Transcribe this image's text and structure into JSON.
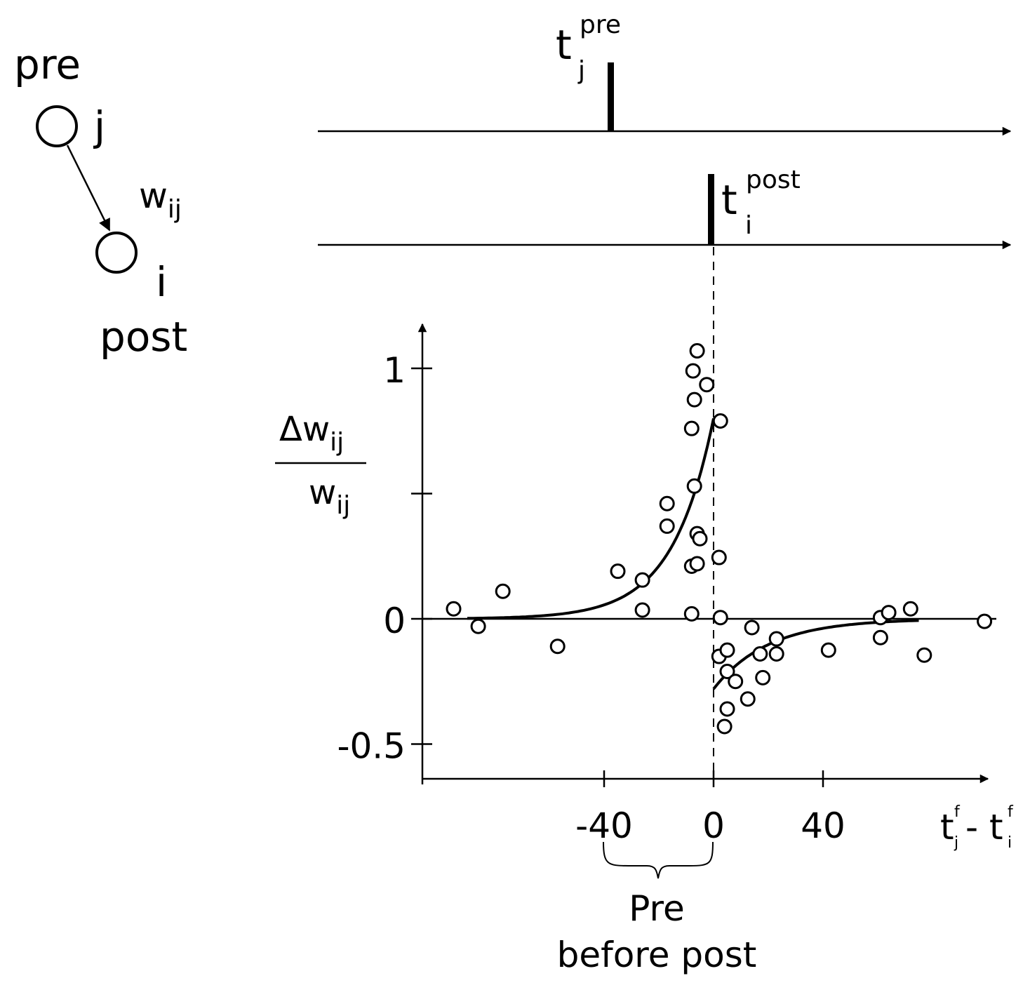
{
  "diagram": {
    "neuron_pre_label": "pre",
    "neuron_pre_index": "j",
    "neuron_post_label": "post",
    "neuron_post_index": "i",
    "weight_symbol": "w",
    "weight_subscript": "ij",
    "pre_spike": {
      "symbol": "t",
      "subscript": "j",
      "superscript": "pre"
    },
    "post_spike": {
      "symbol": "t",
      "subscript": "i",
      "superscript": "post"
    },
    "brace_label_line1": "Pre",
    "brace_label_line2": "before post"
  },
  "chart_data": {
    "type": "scatter",
    "ylabel_numerator": "Δw",
    "ylabel_numerator_sub": "ij",
    "ylabel_denominator": "w",
    "ylabel_denominator_sub": "ij",
    "xlabel_t1": "t",
    "xlabel_t1_sub": "j",
    "xlabel_t1_sup": "f",
    "xlabel_minus": "- ",
    "xlabel_t2": "t",
    "xlabel_t2_sub": "i",
    "xlabel_t2_sup": "f",
    "x_ticks": [
      -40,
      0,
      40
    ],
    "x_tick_labels": [
      "-40",
      "0",
      "40"
    ],
    "y_ticks": [
      -0.5,
      0,
      0.5,
      1
    ],
    "y_tick_labels": [
      "-0.5",
      "0",
      "",
      "1"
    ],
    "xlim": [
      -105,
      100
    ],
    "ylim": [
      -0.65,
      1.15
    ],
    "points": [
      {
        "x": -95,
        "y": 0.04
      },
      {
        "x": -86,
        "y": -0.03
      },
      {
        "x": -77,
        "y": 0.11
      },
      {
        "x": -57,
        "y": -0.11
      },
      {
        "x": -35,
        "y": 0.19
      },
      {
        "x": -26,
        "y": 0.155
      },
      {
        "x": -26,
        "y": 0.035
      },
      {
        "x": -17,
        "y": 0.46
      },
      {
        "x": -17,
        "y": 0.37
      },
      {
        "x": -8,
        "y": 0.02
      },
      {
        "x": -8,
        "y": 0.21
      },
      {
        "x": -7,
        "y": 0.53
      },
      {
        "x": -6,
        "y": 0.34
      },
      {
        "x": -6,
        "y": 0.22
      },
      {
        "x": -5,
        "y": 0.32
      },
      {
        "x": -8,
        "y": 0.76
      },
      {
        "x": -7,
        "y": 0.875
      },
      {
        "x": -7.5,
        "y": 0.99
      },
      {
        "x": -6,
        "y": 1.07
      },
      {
        "x": -2.5,
        "y": 0.935
      },
      {
        "x": 2.5,
        "y": 0.79
      },
      {
        "x": 2,
        "y": 0.245
      },
      {
        "x": 2.5,
        "y": 0.005
      },
      {
        "x": 2,
        "y": -0.15
      },
      {
        "x": 4,
        "y": -0.43
      },
      {
        "x": 5,
        "y": -0.36
      },
      {
        "x": 5,
        "y": -0.125
      },
      {
        "x": 5,
        "y": -0.21
      },
      {
        "x": 8,
        "y": -0.25
      },
      {
        "x": 12.5,
        "y": -0.32
      },
      {
        "x": 14,
        "y": -0.035
      },
      {
        "x": 17,
        "y": -0.14
      },
      {
        "x": 18,
        "y": -0.235
      },
      {
        "x": 23,
        "y": -0.08
      },
      {
        "x": 23,
        "y": -0.14
      },
      {
        "x": 42,
        "y": -0.125
      },
      {
        "x": 61,
        "y": 0.005
      },
      {
        "x": 61,
        "y": -0.075
      },
      {
        "x": 64,
        "y": 0.025
      },
      {
        "x": 72,
        "y": 0.04
      },
      {
        "x": 77,
        "y": -0.145
      },
      {
        "x": 99,
        "y": -0.01
      }
    ],
    "fit_ltp": {
      "x_from": -90,
      "x_to": 0,
      "amplitude": 0.8,
      "tau": 15
    },
    "fit_ltd": {
      "x_from": 0,
      "x_to": 75,
      "amplitude": -0.28,
      "tau": 20
    }
  }
}
